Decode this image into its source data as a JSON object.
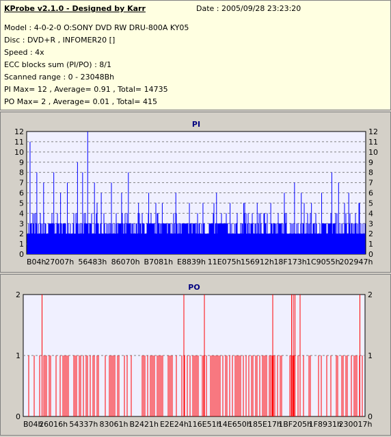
{
  "info": {
    "title": "KProbe v2.1.0 - Designed by Karr",
    "date": "Date : 2005/09/28 23:23:20",
    "lines": [
      "Model : 4-0-2-0 O:SONY     DVD RW DRU-800A  KY05",
      "Disc : DVD+R , INFOMER20 []",
      "Speed : 4x",
      "ECC blocks sum (PI/PO) : 8/1",
      "Scanned range : 0 - 23048Bh",
      "PI Max= 12 , Average= 0.91 , Total= 14735",
      "PO Max= 2 , Average= 0.01 , Total= 415"
    ]
  },
  "chart_data": [
    {
      "type": "bar",
      "title": "PI",
      "ylim": [
        0,
        12
      ],
      "yticks": [
        0,
        1,
        2,
        3,
        4,
        5,
        6,
        7,
        8,
        9,
        10,
        11,
        12
      ],
      "xtick_labels": [
        "B04h",
        "27007h",
        "56483h",
        "86070h",
        "B7081h",
        "E8839h",
        "11E075h",
        "156912h",
        "18F173h",
        "1C9055h",
        "202947h"
      ],
      "grid": true,
      "color": "#0000ff",
      "baseline": 2,
      "spikes": [
        {
          "x": 0.01,
          "v": 11
        },
        {
          "x": 0.03,
          "v": 8
        },
        {
          "x": 0.05,
          "v": 7
        },
        {
          "x": 0.08,
          "v": 8
        },
        {
          "x": 0.1,
          "v": 6
        },
        {
          "x": 0.12,
          "v": 7
        },
        {
          "x": 0.15,
          "v": 9
        },
        {
          "x": 0.165,
          "v": 8
        },
        {
          "x": 0.18,
          "v": 12
        },
        {
          "x": 0.2,
          "v": 7
        },
        {
          "x": 0.22,
          "v": 6
        },
        {
          "x": 0.25,
          "v": 7
        },
        {
          "x": 0.28,
          "v": 6
        },
        {
          "x": 0.3,
          "v": 8
        },
        {
          "x": 0.33,
          "v": 5
        },
        {
          "x": 0.36,
          "v": 6
        },
        {
          "x": 0.4,
          "v": 5
        },
        {
          "x": 0.44,
          "v": 6
        },
        {
          "x": 0.48,
          "v": 5
        },
        {
          "x": 0.52,
          "v": 5
        },
        {
          "x": 0.56,
          "v": 6
        },
        {
          "x": 0.6,
          "v": 5
        },
        {
          "x": 0.64,
          "v": 5
        },
        {
          "x": 0.68,
          "v": 5
        },
        {
          "x": 0.72,
          "v": 5
        },
        {
          "x": 0.76,
          "v": 6
        },
        {
          "x": 0.79,
          "v": 7
        },
        {
          "x": 0.81,
          "v": 6
        },
        {
          "x": 0.84,
          "v": 5
        },
        {
          "x": 0.87,
          "v": 6
        },
        {
          "x": 0.9,
          "v": 8
        },
        {
          "x": 0.92,
          "v": 7
        },
        {
          "x": 0.95,
          "v": 6
        },
        {
          "x": 0.98,
          "v": 5
        }
      ]
    },
    {
      "type": "bar",
      "title": "PO",
      "ylim": [
        0,
        2
      ],
      "yticks": [
        0,
        1,
        2
      ],
      "xtick_labels": [
        "B04h",
        "26016h",
        "54337h",
        "83061h",
        "B2421h",
        "E2E24h",
        "116E51h",
        "14E650h",
        "185E17h",
        "1BF205h",
        "1F8931h",
        "230017h"
      ],
      "grid": true,
      "color": "#ff0000",
      "spikes_2": [
        0.055,
        0.47,
        0.53,
        0.73,
        0.785,
        0.79,
        0.795,
        0.81,
        0.985
      ],
      "density_1": 0.55
    }
  ]
}
